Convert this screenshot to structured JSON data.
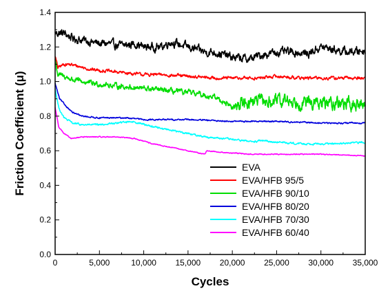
{
  "chart_data": {
    "type": "line",
    "xlabel": "Cycles",
    "ylabel": "Friction Coefficient (μ)",
    "xlim": [
      0,
      35000
    ],
    "ylim": [
      0.0,
      1.4
    ],
    "x_ticks": [
      "0",
      "5,000",
      "10,000",
      "15,000",
      "20,000",
      "25,000",
      "30,000",
      "35,000"
    ],
    "y_ticks": [
      "0.0",
      "0.2",
      "0.4",
      "0.6",
      "0.8",
      "1.0",
      "1.2",
      "1.4"
    ],
    "grid": false,
    "legend_position": "bottom-right",
    "series": [
      {
        "name": "EVA",
        "color": "#000000",
        "noise": 0.018,
        "points": [
          [
            0,
            1.28
          ],
          [
            1000,
            1.28
          ],
          [
            2000,
            1.25
          ],
          [
            3000,
            1.24
          ],
          [
            4000,
            1.23
          ],
          [
            5000,
            1.22
          ],
          [
            6000,
            1.22
          ],
          [
            7000,
            1.21
          ],
          [
            8000,
            1.21
          ],
          [
            9000,
            1.22
          ],
          [
            10000,
            1.2
          ],
          [
            12000,
            1.2
          ],
          [
            13000,
            1.23
          ],
          [
            15000,
            1.2
          ],
          [
            17000,
            1.17
          ],
          [
            18000,
            1.17
          ],
          [
            20000,
            1.14
          ],
          [
            22000,
            1.13
          ],
          [
            23000,
            1.15
          ],
          [
            25000,
            1.17
          ],
          [
            27000,
            1.17
          ],
          [
            28500,
            1.16
          ],
          [
            30000,
            1.2
          ],
          [
            31000,
            1.19
          ],
          [
            32000,
            1.18
          ],
          [
            33000,
            1.17
          ],
          [
            35000,
            1.18
          ]
        ]
      },
      {
        "name": "EVA/HFB 95/5",
        "color": "#ff0000",
        "noise": 0.007,
        "points": [
          [
            0,
            1.15
          ],
          [
            300,
            1.08
          ],
          [
            1000,
            1.1
          ],
          [
            1500,
            1.1
          ],
          [
            2500,
            1.09
          ],
          [
            4000,
            1.07
          ],
          [
            6000,
            1.06
          ],
          [
            8000,
            1.05
          ],
          [
            10000,
            1.04
          ],
          [
            12000,
            1.04
          ],
          [
            15000,
            1.03
          ],
          [
            18000,
            1.02
          ],
          [
            20000,
            1.02
          ],
          [
            23000,
            1.02
          ],
          [
            25000,
            1.03
          ],
          [
            28000,
            1.02
          ],
          [
            30000,
            1.02
          ],
          [
            33000,
            1.02
          ],
          [
            35000,
            1.02
          ]
        ]
      },
      {
        "name": "EVA/HFB 90/10",
        "color": "#00dd00",
        "noise": 0.012,
        "points": [
          [
            0,
            1.13
          ],
          [
            300,
            1.04
          ],
          [
            1000,
            1.03
          ],
          [
            2000,
            1.01
          ],
          [
            4000,
            0.99
          ],
          [
            6000,
            0.98
          ],
          [
            8000,
            0.97
          ],
          [
            10000,
            0.96
          ],
          [
            12000,
            0.95
          ],
          [
            14000,
            0.94
          ],
          [
            16000,
            0.93
          ],
          [
            18000,
            0.91
          ],
          [
            19500,
            0.87
          ],
          [
            20200,
            0.84
          ],
          [
            21000,
            0.88
          ],
          [
            22500,
            0.89
          ],
          [
            24000,
            0.88
          ],
          [
            26000,
            0.89
          ],
          [
            28000,
            0.88
          ],
          [
            30000,
            0.87
          ],
          [
            32000,
            0.88
          ],
          [
            34000,
            0.86
          ],
          [
            35000,
            0.87
          ]
        ]
      },
      {
        "name": "EVA/HFB 80/20",
        "color": "#0000dd",
        "noise": 0.003,
        "points": [
          [
            0,
            0.99
          ],
          [
            500,
            0.9
          ],
          [
            1200,
            0.86
          ],
          [
            2000,
            0.82
          ],
          [
            3000,
            0.8
          ],
          [
            5000,
            0.79
          ],
          [
            8000,
            0.79
          ],
          [
            10000,
            0.78
          ],
          [
            15000,
            0.78
          ],
          [
            20000,
            0.77
          ],
          [
            25000,
            0.77
          ],
          [
            30000,
            0.76
          ],
          [
            35000,
            0.76
          ]
        ]
      },
      {
        "name": "EVA/HFB 70/30",
        "color": "#00ffff",
        "noise": 0.004,
        "points": [
          [
            0,
            0.96
          ],
          [
            400,
            0.85
          ],
          [
            1000,
            0.79
          ],
          [
            2000,
            0.76
          ],
          [
            3000,
            0.75
          ],
          [
            5000,
            0.75
          ],
          [
            7000,
            0.76
          ],
          [
            8500,
            0.77
          ],
          [
            9500,
            0.76
          ],
          [
            11000,
            0.74
          ],
          [
            13000,
            0.72
          ],
          [
            15000,
            0.7
          ],
          [
            17000,
            0.68
          ],
          [
            19000,
            0.67
          ],
          [
            21000,
            0.66
          ],
          [
            22800,
            0.65
          ],
          [
            23000,
            0.66
          ],
          [
            25000,
            0.65
          ],
          [
            28000,
            0.64
          ],
          [
            30000,
            0.64
          ],
          [
            32000,
            0.64
          ],
          [
            35000,
            0.65
          ]
        ]
      },
      {
        "name": "EVA/HFB 60/40",
        "color": "#ff00ff",
        "noise": 0.002,
        "points": [
          [
            0,
            0.85
          ],
          [
            400,
            0.74
          ],
          [
            1000,
            0.7
          ],
          [
            1800,
            0.67
          ],
          [
            3000,
            0.68
          ],
          [
            5000,
            0.68
          ],
          [
            7000,
            0.68
          ],
          [
            9000,
            0.67
          ],
          [
            11000,
            0.64
          ],
          [
            13000,
            0.62
          ],
          [
            15000,
            0.6
          ],
          [
            16900,
            0.58
          ],
          [
            17100,
            0.6
          ],
          [
            19000,
            0.59
          ],
          [
            22000,
            0.58
          ],
          [
            25000,
            0.58
          ],
          [
            30000,
            0.58
          ],
          [
            35000,
            0.57
          ]
        ]
      }
    ]
  }
}
